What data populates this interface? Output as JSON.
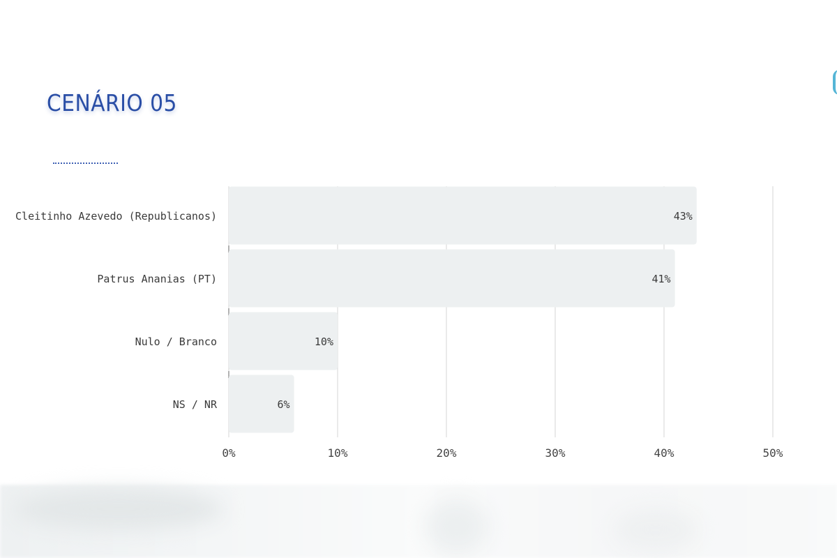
{
  "title": "CENÁRIO 05",
  "chart_data": {
    "type": "bar",
    "orientation": "horizontal",
    "categories": [
      "Cleitinho Azevedo (Republicanos)",
      "Patrus Ananias (PT)",
      "Nulo / Branco",
      "NS / NR"
    ],
    "values": [
      43,
      41,
      10,
      6
    ],
    "value_labels": [
      "43%",
      "41%",
      "10%",
      "6%"
    ],
    "xticks": [
      "0%",
      "10%",
      "20%",
      "30%",
      "40%",
      "50%"
    ],
    "xlim": [
      0,
      50
    ],
    "grid": true,
    "legend": "none",
    "colors": {
      "bar": "#edf0f1",
      "grid": "#d4d4d4",
      "title": "#2a4ea6"
    }
  }
}
